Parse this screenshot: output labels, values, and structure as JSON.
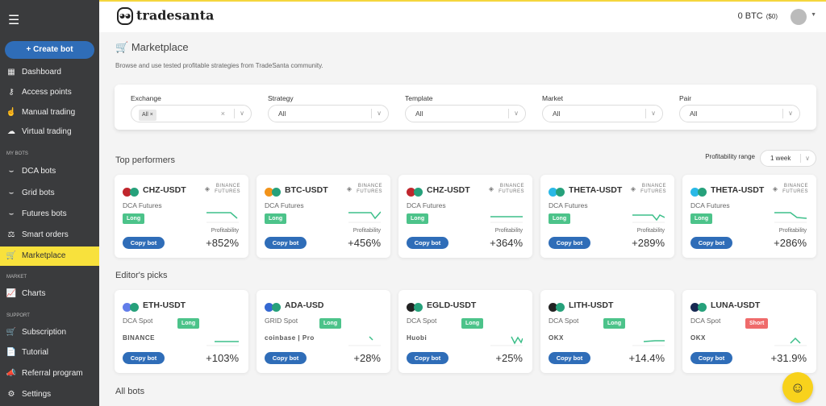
{
  "sidebar": {
    "create_label": "Create bot",
    "items": [
      {
        "label": "Dashboard",
        "icon": "grid-icon",
        "glyph": "▦"
      },
      {
        "label": "Access points",
        "icon": "key-icon",
        "glyph": "⚷"
      },
      {
        "label": "Manual trading",
        "icon": "hand-icon",
        "glyph": "☝"
      },
      {
        "label": "Virtual trading",
        "icon": "cloud-icon",
        "glyph": "☁"
      },
      {
        "label": "DCA bots",
        "icon": "dca-bots-icon",
        "glyph": "⌣"
      },
      {
        "label": "Grid bots",
        "icon": "grid-bots-icon",
        "glyph": "⌣"
      },
      {
        "label": "Futures bots",
        "icon": "futures-bots-icon",
        "glyph": "⌣"
      },
      {
        "label": "Smart orders",
        "icon": "smart-orders-icon",
        "glyph": "⚖"
      },
      {
        "label": "Marketplace",
        "icon": "cart-icon",
        "glyph": "🛒"
      },
      {
        "label": "Charts",
        "icon": "chart-icon",
        "glyph": "📈"
      },
      {
        "label": "Subscription",
        "icon": "subscription-icon",
        "glyph": "🛒"
      },
      {
        "label": "Tutorial",
        "icon": "document-icon",
        "glyph": "📄"
      },
      {
        "label": "Referral program",
        "icon": "megaphone-icon",
        "glyph": "📣"
      },
      {
        "label": "Settings",
        "icon": "gear-icon",
        "glyph": "⚙"
      }
    ],
    "sections": [
      "MY BOTS",
      "MARKET",
      "SUPPORT"
    ]
  },
  "header": {
    "brand": "tradesanta",
    "balance": "0 BTC",
    "balance_usd": "($0)"
  },
  "page": {
    "title": "Marketplace",
    "subtitle": "Browse and use tested profitable strategies from TradeSanta community."
  },
  "filters": [
    {
      "label": "Exchange",
      "value": "All"
    },
    {
      "label": "Strategy",
      "value": "All"
    },
    {
      "label": "Template",
      "value": "All"
    },
    {
      "label": "Market",
      "value": "All"
    },
    {
      "label": "Pair",
      "value": "All"
    }
  ],
  "top": {
    "title": "Top performers",
    "range_label": "Profitability range",
    "range_value": "1 week",
    "profit_label": "Profitability",
    "copy_label": "Copy bot",
    "cards": [
      {
        "pair": "CHZ-USDT",
        "strategy": "DCA Futures",
        "direction": "Long",
        "exchange": "BINANCE FUTURES",
        "profit": "+852%",
        "coin": "#c0262d"
      },
      {
        "pair": "BTC-USDT",
        "strategy": "DCA Futures",
        "direction": "Long",
        "exchange": "BINANCE FUTURES",
        "profit": "+456%",
        "coin": "#f2931a"
      },
      {
        "pair": "CHZ-USDT",
        "strategy": "DCA Futures",
        "direction": "Long",
        "exchange": "BINANCE FUTURES",
        "profit": "+364%",
        "coin": "#c0262d"
      },
      {
        "pair": "THETA-USDT",
        "strategy": "DCA Futures",
        "direction": "Long",
        "exchange": "BINANCE FUTURES",
        "profit": "+289%",
        "coin": "#2ab8e6"
      },
      {
        "pair": "THETA-USDT",
        "strategy": "DCA Futures",
        "direction": "Long",
        "exchange": "BINANCE FUTURES",
        "profit": "+286%",
        "coin": "#2ab8e6"
      }
    ]
  },
  "editors": {
    "title": "Editor's picks",
    "copy_label": "Copy bot",
    "cards": [
      {
        "pair": "ETH-USDT",
        "strategy": "DCA Spot",
        "direction": "Long",
        "exchange": "BINANCE",
        "profit": "+103%",
        "coin": "#627eea"
      },
      {
        "pair": "ADA-USD",
        "strategy": "GRID Spot",
        "direction": "Long",
        "exchange": "coinbase | Pro",
        "profit": "+28%",
        "coin": "#3468d1"
      },
      {
        "pair": "EGLD-USDT",
        "strategy": "DCA Spot",
        "direction": "Long",
        "exchange": "Huobi",
        "profit": "+25%",
        "coin": "#222222"
      },
      {
        "pair": "LITH-USDT",
        "strategy": "DCA Spot",
        "direction": "Long",
        "exchange": "OKX",
        "profit": "+14.4%",
        "coin": "#222222"
      },
      {
        "pair": "LUNA-USDT",
        "strategy": "DCA Spot",
        "direction": "Short",
        "exchange": "OKX",
        "profit": "+31.9%",
        "coin": "#172852"
      }
    ]
  },
  "all": {
    "title": "All bots"
  },
  "colors": {
    "accent": "#f8e13c",
    "primary": "#2f6db8",
    "long": "#4cc38a",
    "short": "#ef6b6b",
    "usdt": "#26a17b"
  }
}
